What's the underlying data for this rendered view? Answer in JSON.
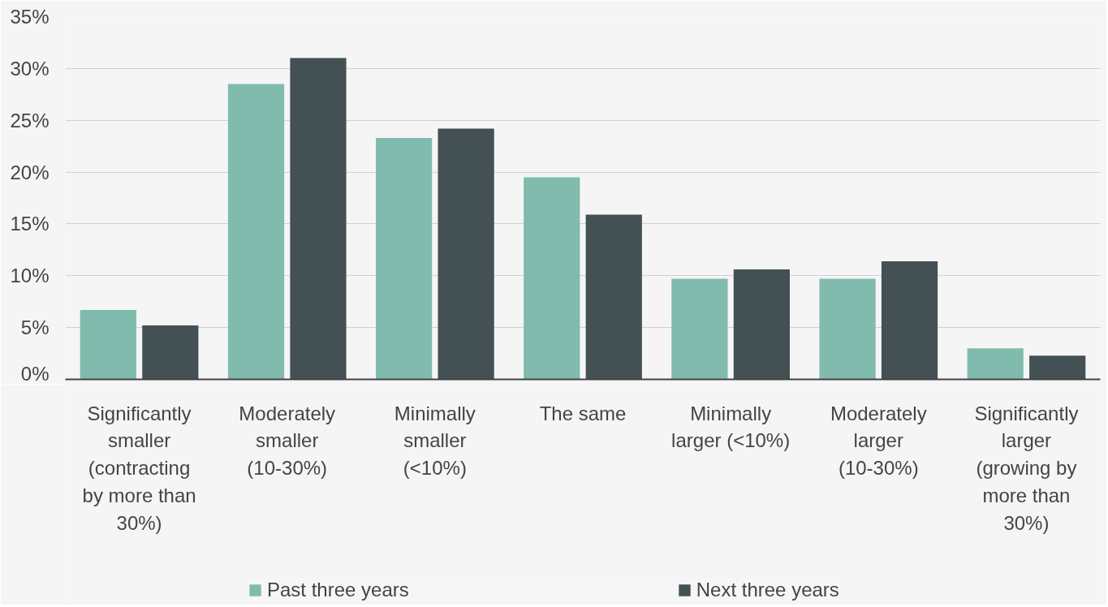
{
  "chart_data": {
    "type": "bar",
    "categories": [
      "Significantly smaller (contracting by more than 30%)",
      "Moderately smaller (10-30%)",
      "Minimally smaller (<10%)",
      "The same",
      "Minimally larger (<10%)",
      "Moderately larger (10-30%)",
      "Significantly larger (growing by more than 30%)"
    ],
    "series": [
      {
        "name": "Past three years",
        "color": "#80bbad",
        "values": [
          6.7,
          28.5,
          23.3,
          19.5,
          9.7,
          9.7,
          3.0
        ]
      },
      {
        "name": "Next three years",
        "color": "#435154",
        "values": [
          5.2,
          31.0,
          24.2,
          15.9,
          10.6,
          11.4,
          2.3
        ]
      }
    ],
    "ylim": [
      0,
      35
    ],
    "yticks": [
      {
        "value": 0,
        "label": "0%"
      },
      {
        "value": 5,
        "label": "5%"
      },
      {
        "value": 10,
        "label": "10%"
      },
      {
        "value": 15,
        "label": "15%"
      },
      {
        "value": 20,
        "label": "20%"
      },
      {
        "value": 25,
        "label": "25%"
      },
      {
        "value": 30,
        "label": "30%"
      },
      {
        "value": 35,
        "label": "35%"
      }
    ],
    "grid": "y",
    "legend": "bottom"
  }
}
